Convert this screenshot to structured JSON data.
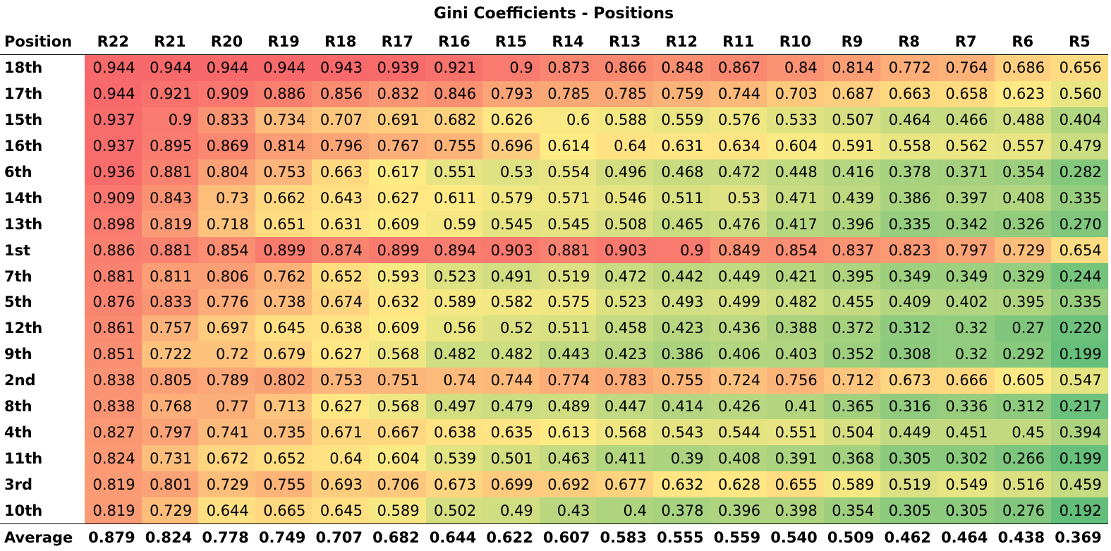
{
  "chart_data": {
    "type": "table",
    "title": "Gini Coefficients - Positions",
    "corner_label": "Position",
    "columns": [
      "R22",
      "R21",
      "R20",
      "R19",
      "R18",
      "R17",
      "R16",
      "R15",
      "R14",
      "R13",
      "R12",
      "R11",
      "R10",
      "R9",
      "R8",
      "R7",
      "R6",
      "R5"
    ],
    "rows": [
      {
        "label": "18th",
        "values": [
          "0.944",
          "0.944",
          "0.944",
          "0.944",
          "0.943",
          "0.939",
          "0.921",
          "0.9",
          "0.873",
          "0.866",
          "0.848",
          "0.867",
          "0.84",
          "0.814",
          "0.772",
          "0.764",
          "0.686",
          "0.656"
        ]
      },
      {
        "label": "17th",
        "values": [
          "0.944",
          "0.921",
          "0.909",
          "0.886",
          "0.856",
          "0.832",
          "0.846",
          "0.793",
          "0.785",
          "0.785",
          "0.759",
          "0.744",
          "0.703",
          "0.687",
          "0.663",
          "0.658",
          "0.623",
          "0.560"
        ]
      },
      {
        "label": "15th",
        "values": [
          "0.937",
          "0.9",
          "0.833",
          "0.734",
          "0.707",
          "0.691",
          "0.682",
          "0.626",
          "0.6",
          "0.588",
          "0.559",
          "0.576",
          "0.533",
          "0.507",
          "0.464",
          "0.466",
          "0.488",
          "0.404"
        ]
      },
      {
        "label": "16th",
        "values": [
          "0.937",
          "0.895",
          "0.869",
          "0.814",
          "0.796",
          "0.767",
          "0.755",
          "0.696",
          "0.614",
          "0.64",
          "0.631",
          "0.634",
          "0.604",
          "0.591",
          "0.558",
          "0.562",
          "0.557",
          "0.479"
        ]
      },
      {
        "label": "6th",
        "values": [
          "0.936",
          "0.881",
          "0.804",
          "0.753",
          "0.663",
          "0.617",
          "0.551",
          "0.53",
          "0.554",
          "0.496",
          "0.468",
          "0.472",
          "0.448",
          "0.416",
          "0.378",
          "0.371",
          "0.354",
          "0.282"
        ]
      },
      {
        "label": "14th",
        "values": [
          "0.909",
          "0.843",
          "0.73",
          "0.662",
          "0.643",
          "0.627",
          "0.611",
          "0.579",
          "0.571",
          "0.546",
          "0.511",
          "0.53",
          "0.471",
          "0.439",
          "0.386",
          "0.397",
          "0.408",
          "0.335"
        ]
      },
      {
        "label": "13th",
        "values": [
          "0.898",
          "0.819",
          "0.718",
          "0.651",
          "0.631",
          "0.609",
          "0.59",
          "0.545",
          "0.545",
          "0.508",
          "0.465",
          "0.476",
          "0.417",
          "0.396",
          "0.335",
          "0.342",
          "0.326",
          "0.270"
        ]
      },
      {
        "label": "1st",
        "values": [
          "0.886",
          "0.881",
          "0.854",
          "0.899",
          "0.874",
          "0.899",
          "0.894",
          "0.903",
          "0.881",
          "0.903",
          "0.9",
          "0.849",
          "0.854",
          "0.837",
          "0.823",
          "0.797",
          "0.729",
          "0.654"
        ]
      },
      {
        "label": "7th",
        "values": [
          "0.881",
          "0.811",
          "0.806",
          "0.762",
          "0.652",
          "0.593",
          "0.523",
          "0.491",
          "0.519",
          "0.472",
          "0.442",
          "0.449",
          "0.421",
          "0.395",
          "0.349",
          "0.349",
          "0.329",
          "0.244"
        ]
      },
      {
        "label": "5th",
        "values": [
          "0.876",
          "0.833",
          "0.776",
          "0.738",
          "0.674",
          "0.632",
          "0.589",
          "0.582",
          "0.575",
          "0.523",
          "0.493",
          "0.499",
          "0.482",
          "0.455",
          "0.409",
          "0.402",
          "0.395",
          "0.335"
        ]
      },
      {
        "label": "12th",
        "values": [
          "0.861",
          "0.757",
          "0.697",
          "0.645",
          "0.638",
          "0.609",
          "0.56",
          "0.52",
          "0.511",
          "0.458",
          "0.423",
          "0.436",
          "0.388",
          "0.372",
          "0.312",
          "0.32",
          "0.27",
          "0.220"
        ]
      },
      {
        "label": "9th",
        "values": [
          "0.851",
          "0.722",
          "0.72",
          "0.679",
          "0.627",
          "0.568",
          "0.482",
          "0.482",
          "0.443",
          "0.423",
          "0.386",
          "0.406",
          "0.403",
          "0.352",
          "0.308",
          "0.32",
          "0.292",
          "0.199"
        ]
      },
      {
        "label": "2nd",
        "values": [
          "0.838",
          "0.805",
          "0.789",
          "0.802",
          "0.753",
          "0.751",
          "0.74",
          "0.744",
          "0.774",
          "0.783",
          "0.755",
          "0.724",
          "0.756",
          "0.712",
          "0.673",
          "0.666",
          "0.605",
          "0.547"
        ]
      },
      {
        "label": "8th",
        "values": [
          "0.838",
          "0.768",
          "0.77",
          "0.713",
          "0.627",
          "0.568",
          "0.497",
          "0.479",
          "0.489",
          "0.447",
          "0.414",
          "0.426",
          "0.41",
          "0.365",
          "0.316",
          "0.336",
          "0.312",
          "0.217"
        ]
      },
      {
        "label": "4th",
        "values": [
          "0.827",
          "0.797",
          "0.741",
          "0.735",
          "0.671",
          "0.667",
          "0.638",
          "0.635",
          "0.613",
          "0.568",
          "0.543",
          "0.544",
          "0.551",
          "0.504",
          "0.449",
          "0.451",
          "0.45",
          "0.394"
        ]
      },
      {
        "label": "11th",
        "values": [
          "0.824",
          "0.731",
          "0.672",
          "0.652",
          "0.64",
          "0.604",
          "0.539",
          "0.501",
          "0.463",
          "0.411",
          "0.39",
          "0.408",
          "0.391",
          "0.368",
          "0.305",
          "0.302",
          "0.266",
          "0.199"
        ]
      },
      {
        "label": "3rd",
        "values": [
          "0.819",
          "0.801",
          "0.729",
          "0.755",
          "0.693",
          "0.706",
          "0.673",
          "0.699",
          "0.692",
          "0.677",
          "0.632",
          "0.628",
          "0.655",
          "0.589",
          "0.519",
          "0.549",
          "0.516",
          "0.459"
        ]
      },
      {
        "label": "10th",
        "values": [
          "0.819",
          "0.729",
          "0.644",
          "0.665",
          "0.645",
          "0.589",
          "0.502",
          "0.49",
          "0.43",
          "0.4",
          "0.378",
          "0.396",
          "0.398",
          "0.354",
          "0.305",
          "0.305",
          "0.276",
          "0.192"
        ]
      }
    ],
    "average": {
      "label": "Average",
      "values": [
        "0.879",
        "0.824",
        "0.778",
        "0.749",
        "0.707",
        "0.682",
        "0.644",
        "0.622",
        "0.607",
        "0.583",
        "0.555",
        "0.559",
        "0.540",
        "0.509",
        "0.462",
        "0.464",
        "0.438",
        "0.369"
      ]
    },
    "color_scale": {
      "low": "#63BE7B",
      "mid": "#FFEB84",
      "high": "#F8696B"
    }
  }
}
